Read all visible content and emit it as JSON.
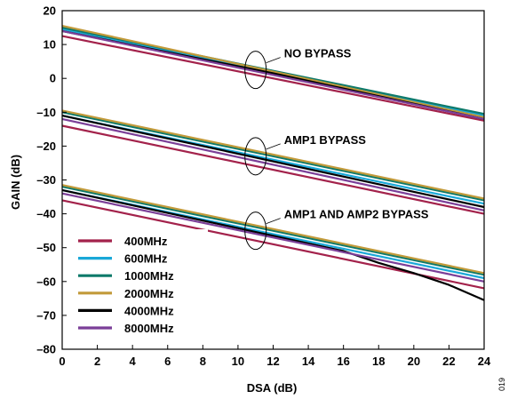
{
  "chart_data": {
    "type": "line",
    "title": "",
    "xlabel": "DSA (dB)",
    "ylabel": "GAIN (dB)",
    "xlim": [
      0,
      24
    ],
    "ylim": [
      -80,
      20
    ],
    "xticks": [
      0,
      2,
      4,
      6,
      8,
      10,
      12,
      14,
      16,
      18,
      20,
      22,
      24
    ],
    "yticks": [
      20,
      10,
      0,
      -10,
      -20,
      -30,
      -40,
      -50,
      -60,
      -70,
      -80
    ],
    "grid": false,
    "legend_position": "bottom-left",
    "legend": [
      {
        "name": "400MHz",
        "color": "#a3224b"
      },
      {
        "name": "600MHz",
        "color": "#1aa8d8"
      },
      {
        "name": "1000MHz",
        "color": "#0e7a6a"
      },
      {
        "name": "2000MHz",
        "color": "#c29a3a"
      },
      {
        "name": "4000MHz",
        "color": "#000000"
      },
      {
        "name": "8000MHz",
        "color": "#7b3f98"
      }
    ],
    "series": [
      {
        "name": "400MHz",
        "group": "NO BYPASS",
        "x": [
          0,
          24
        ],
        "y": [
          12.5,
          -12.5
        ]
      },
      {
        "name": "600MHz",
        "group": "NO BYPASS",
        "x": [
          0,
          24
        ],
        "y": [
          14.5,
          -11.0
        ]
      },
      {
        "name": "1000MHz",
        "group": "NO BYPASS",
        "x": [
          0,
          24
        ],
        "y": [
          15.0,
          -10.5
        ]
      },
      {
        "name": "2000MHz",
        "group": "NO BYPASS",
        "x": [
          0,
          24
        ],
        "y": [
          15.5,
          -11.5
        ]
      },
      {
        "name": "4000MHz",
        "group": "NO BYPASS",
        "x": [
          0,
          12,
          24
        ],
        "y": [
          14.0,
          1.5,
          -12.0
        ]
      },
      {
        "name": "8000MHz",
        "group": "NO BYPASS",
        "x": [
          0,
          24
        ],
        "y": [
          14.0,
          -12.0
        ]
      },
      {
        "name": "400MHz",
        "group": "AMP1 BYPASS",
        "x": [
          0,
          24
        ],
        "y": [
          -14.0,
          -40.0
        ]
      },
      {
        "name": "600MHz",
        "group": "AMP1 BYPASS",
        "x": [
          0,
          24
        ],
        "y": [
          -11.0,
          -37.0
        ]
      },
      {
        "name": "1000MHz",
        "group": "AMP1 BYPASS",
        "x": [
          0,
          24
        ],
        "y": [
          -10.0,
          -36.0
        ]
      },
      {
        "name": "2000MHz",
        "group": "AMP1 BYPASS",
        "x": [
          0,
          24
        ],
        "y": [
          -9.5,
          -35.5
        ]
      },
      {
        "name": "4000MHz",
        "group": "AMP1 BYPASS",
        "x": [
          0,
          24
        ],
        "y": [
          -11.0,
          -38.0
        ]
      },
      {
        "name": "8000MHz",
        "group": "AMP1 BYPASS",
        "x": [
          0,
          24
        ],
        "y": [
          -12.0,
          -39.0
        ]
      },
      {
        "name": "400MHz",
        "group": "AMP1 AND AMP2 BYPASS",
        "x": [
          0,
          24
        ],
        "y": [
          -36.0,
          -62.0
        ]
      },
      {
        "name": "600MHz",
        "group": "AMP1 AND AMP2 BYPASS",
        "x": [
          0,
          24
        ],
        "y": [
          -33.0,
          -59.0
        ]
      },
      {
        "name": "1000MHz",
        "group": "AMP1 AND AMP2 BYPASS",
        "x": [
          0,
          24
        ],
        "y": [
          -32.0,
          -58.0
        ]
      },
      {
        "name": "2000MHz",
        "group": "AMP1 AND AMP2 BYPASS",
        "x": [
          0,
          24
        ],
        "y": [
          -31.5,
          -57.5
        ]
      },
      {
        "name": "4000MHz",
        "group": "AMP1 AND AMP2 BYPASS",
        "x": [
          0,
          16,
          18,
          20,
          22,
          24
        ],
        "y": [
          -33.0,
          -51.0,
          -54.5,
          -57.5,
          -61.0,
          -65.5
        ]
      },
      {
        "name": "8000MHz",
        "group": "AMP1 AND AMP2 BYPASS",
        "x": [
          0,
          24
        ],
        "y": [
          -34.0,
          -60.0
        ]
      }
    ],
    "annotations": [
      {
        "text": "NO BYPASS",
        "x": 11,
        "y": 2.5
      },
      {
        "text": "AMP1 BYPASS",
        "x": 11,
        "y": -23.0
      },
      {
        "text": "AMP1 AND AMP2 BYPASS",
        "x": 11,
        "y": -45.0
      }
    ]
  },
  "figure_id": "019"
}
